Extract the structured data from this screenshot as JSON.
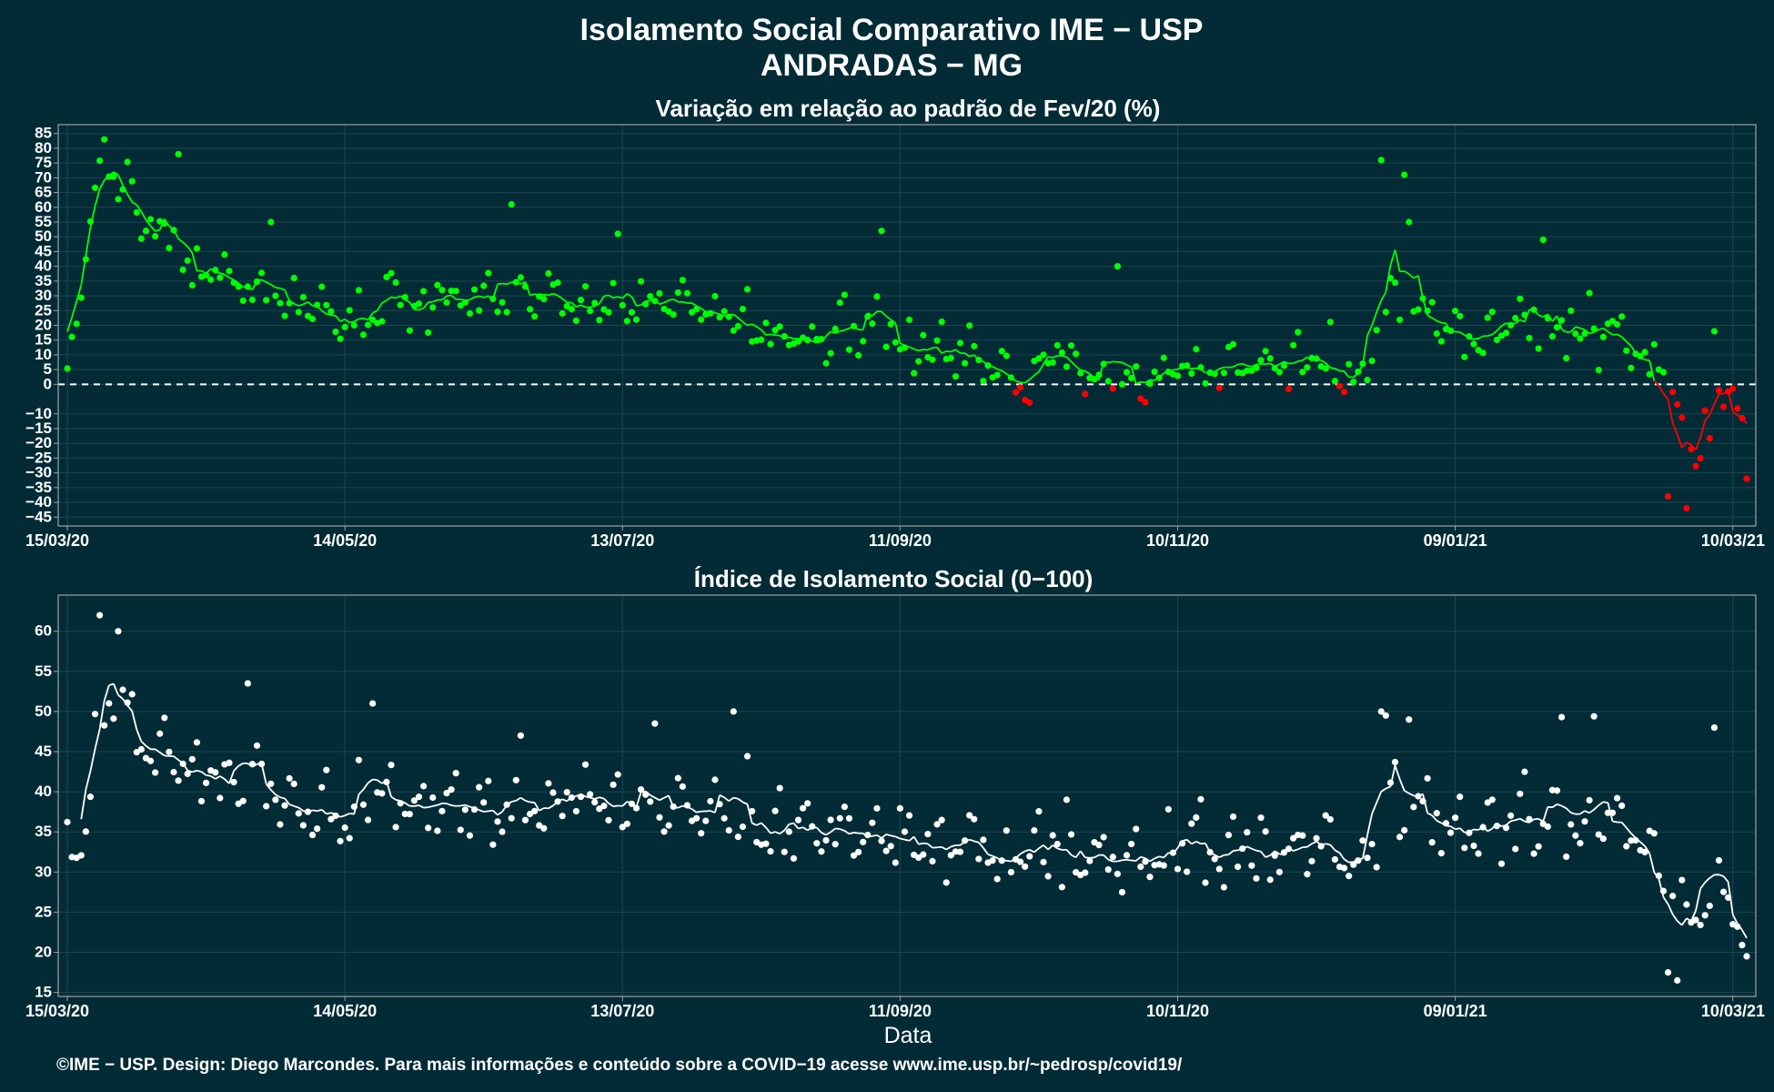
{
  "header": {
    "title": "Isolamento Social Comparativo IME − USP",
    "subtitle": "ANDRADAS − MG"
  },
  "caption": "©IME − USP. Design: Diego Marcondes. Para mais informações e conteúdo sobre a COVID−19 acesse www.ime.usp.br/~pedrosp/covid19/",
  "colors": {
    "background": "#022b36",
    "positive": "#00ff00",
    "negative": "#ff0000",
    "index": "#ffffff"
  },
  "chart_data": [
    {
      "type": "scatter",
      "title": "Variação em relação ao padrão de Fev/20 (%)",
      "xlabel": "",
      "ylabel": "",
      "x_range": [
        "15/03/20",
        "13/03/21"
      ],
      "x_tick_labels": [
        "15/03/20",
        "14/05/20",
        "13/07/20",
        "11/09/20",
        "10/11/20",
        "09/01/21",
        "10/03/21"
      ],
      "y_tick_labels": [
        "85",
        "80",
        "75",
        "70",
        "65",
        "60",
        "55",
        "50",
        "45",
        "40",
        "35",
        "30",
        "25",
        "20",
        "15",
        "10",
        "5",
        "0",
        "−10",
        "−15",
        "−20",
        "−25",
        "−30",
        "−35",
        "−40",
        "−45"
      ],
      "ylim": [
        -48,
        88
      ],
      "reference_line": 0,
      "color_rule": "green when value >= 0, red when value < 0",
      "anchors": [
        {
          "x": "15/03/20",
          "y": 5
        },
        {
          "x": "17/03/20",
          "y": 25
        },
        {
          "x": "20/03/20",
          "y": 50
        },
        {
          "x": "23/03/20",
          "y": 80
        },
        {
          "x": "26/03/20",
          "y": 72
        },
        {
          "x": "31/03/20",
          "y": 58
        },
        {
          "x": "06/04/20",
          "y": 48
        },
        {
          "x": "13/04/20",
          "y": 38
        },
        {
          "x": "20/04/20",
          "y": 35
        },
        {
          "x": "30/04/20",
          "y": 30
        },
        {
          "x": "08/05/20",
          "y": 25
        },
        {
          "x": "14/05/20",
          "y": 21
        },
        {
          "x": "25/05/20",
          "y": 29
        },
        {
          "x": "10/06/20",
          "y": 29
        },
        {
          "x": "20/06/20",
          "y": 26
        },
        {
          "x": "01/07/20",
          "y": 31
        },
        {
          "x": "13/07/20",
          "y": 26
        },
        {
          "x": "25/07/20",
          "y": 28
        },
        {
          "x": "05/08/20",
          "y": 25
        },
        {
          "x": "15/08/20",
          "y": 16
        },
        {
          "x": "01/09/20",
          "y": 17
        },
        {
          "x": "11/09/20",
          "y": 14
        },
        {
          "x": "20/09/20",
          "y": 10
        },
        {
          "x": "01/10/20",
          "y": 5
        },
        {
          "x": "08/10/20",
          "y": -1
        },
        {
          "x": "14/10/20",
          "y": 12
        },
        {
          "x": "22/10/20",
          "y": 5
        },
        {
          "x": "01/11/20",
          "y": 0
        },
        {
          "x": "10/11/20",
          "y": 5
        },
        {
          "x": "20/11/20",
          "y": 4
        },
        {
          "x": "01/12/20",
          "y": 8
        },
        {
          "x": "12/12/20",
          "y": 8
        },
        {
          "x": "20/12/20",
          "y": 2
        },
        {
          "x": "25/12/20",
          "y": 26
        },
        {
          "x": "01/01/21",
          "y": 27
        },
        {
          "x": "09/01/21",
          "y": 12
        },
        {
          "x": "20/01/21",
          "y": 22
        },
        {
          "x": "01/02/21",
          "y": 18
        },
        {
          "x": "12/02/21",
          "y": 20
        },
        {
          "x": "20/02/21",
          "y": 8
        },
        {
          "x": "26/02/21",
          "y": -5
        },
        {
          "x": "02/03/21",
          "y": -22
        },
        {
          "x": "06/03/21",
          "y": -8
        },
        {
          "x": "10/03/21",
          "y": -5
        },
        {
          "x": "13/03/21",
          "y": -15
        }
      ],
      "outliers": [
        {
          "x": "23/03/20",
          "y": 83
        },
        {
          "x": "08/04/20",
          "y": 78
        },
        {
          "x": "28/04/20",
          "y": 55
        },
        {
          "x": "19/06/20",
          "y": 61
        },
        {
          "x": "12/07/20",
          "y": 51
        },
        {
          "x": "07/09/20",
          "y": 52
        },
        {
          "x": "28/10/20",
          "y": 40
        },
        {
          "x": "24/12/20",
          "y": 76
        },
        {
          "x": "29/12/20",
          "y": 71
        },
        {
          "x": "30/12/20",
          "y": 55
        },
        {
          "x": "28/01/21",
          "y": 49
        },
        {
          "x": "28/02/21",
          "y": -42
        },
        {
          "x": "24/02/21",
          "y": -38
        },
        {
          "x": "06/03/21",
          "y": 18
        },
        {
          "x": "13/03/21",
          "y": -32
        }
      ]
    },
    {
      "type": "scatter",
      "title": "Índice de Isolamento Social (0−100)",
      "xlabel": "Data",
      "ylabel": "",
      "x_range": [
        "15/03/20",
        "13/03/21"
      ],
      "x_tick_labels": [
        "15/03/20",
        "14/05/20",
        "13/07/20",
        "11/09/20",
        "10/11/20",
        "09/01/21",
        "10/03/21"
      ],
      "y_tick_labels": [
        "60",
        "55",
        "50",
        "45",
        "40",
        "35",
        "30",
        "25",
        "20",
        "15"
      ],
      "ylim": [
        14.5,
        64.5
      ],
      "anchors": [
        {
          "x": "15/03/20",
          "y": 32
        },
        {
          "x": "19/03/20",
          "y": 38
        },
        {
          "x": "23/03/20",
          "y": 51
        },
        {
          "x": "26/03/20",
          "y": 52
        },
        {
          "x": "31/03/20",
          "y": 46
        },
        {
          "x": "08/04/20",
          "y": 44
        },
        {
          "x": "16/04/20",
          "y": 41
        },
        {
          "x": "25/04/20",
          "y": 41
        },
        {
          "x": "05/05/20",
          "y": 39
        },
        {
          "x": "14/05/20",
          "y": 37
        },
        {
          "x": "25/05/20",
          "y": 39
        },
        {
          "x": "10/06/20",
          "y": 38
        },
        {
          "x": "25/06/20",
          "y": 38
        },
        {
          "x": "05/07/20",
          "y": 40
        },
        {
          "x": "13/07/20",
          "y": 38
        },
        {
          "x": "25/07/20",
          "y": 38
        },
        {
          "x": "05/08/20",
          "y": 38
        },
        {
          "x": "15/08/20",
          "y": 35
        },
        {
          "x": "01/09/20",
          "y": 35
        },
        {
          "x": "11/09/20",
          "y": 35
        },
        {
          "x": "20/09/20",
          "y": 33
        },
        {
          "x": "05/10/20",
          "y": 32
        },
        {
          "x": "15/10/20",
          "y": 33
        },
        {
          "x": "22/10/20",
          "y": 31
        },
        {
          "x": "01/11/20",
          "y": 31
        },
        {
          "x": "10/11/20",
          "y": 34
        },
        {
          "x": "20/11/20",
          "y": 32
        },
        {
          "x": "01/12/20",
          "y": 33
        },
        {
          "x": "12/12/20",
          "y": 33
        },
        {
          "x": "20/12/20",
          "y": 30
        },
        {
          "x": "25/12/20",
          "y": 38
        },
        {
          "x": "01/01/21",
          "y": 39
        },
        {
          "x": "09/01/21",
          "y": 35
        },
        {
          "x": "20/01/21",
          "y": 37
        },
        {
          "x": "01/02/21",
          "y": 36
        },
        {
          "x": "12/02/21",
          "y": 37
        },
        {
          "x": "20/02/21",
          "y": 33
        },
        {
          "x": "26/02/21",
          "y": 27
        },
        {
          "x": "02/03/21",
          "y": 23
        },
        {
          "x": "06/03/21",
          "y": 28
        },
        {
          "x": "10/03/21",
          "y": 27
        },
        {
          "x": "13/03/21",
          "y": 20
        }
      ],
      "outliers": [
        {
          "x": "22/03/20",
          "y": 62
        },
        {
          "x": "26/03/20",
          "y": 60
        },
        {
          "x": "23/04/20",
          "y": 53.5
        },
        {
          "x": "20/05/20",
          "y": 51
        },
        {
          "x": "21/06/20",
          "y": 47
        },
        {
          "x": "20/07/20",
          "y": 48.5
        },
        {
          "x": "06/08/20",
          "y": 50
        },
        {
          "x": "24/12/20",
          "y": 50
        },
        {
          "x": "25/12/20",
          "y": 49.5
        },
        {
          "x": "30/12/20",
          "y": 49
        },
        {
          "x": "01/02/21",
          "y": 49.3
        },
        {
          "x": "08/02/21",
          "y": 49.4
        },
        {
          "x": "24/02/21",
          "y": 17.5
        },
        {
          "x": "26/02/21",
          "y": 16.5
        },
        {
          "x": "06/03/21",
          "y": 48
        },
        {
          "x": "13/03/21",
          "y": 19.5
        }
      ]
    }
  ]
}
